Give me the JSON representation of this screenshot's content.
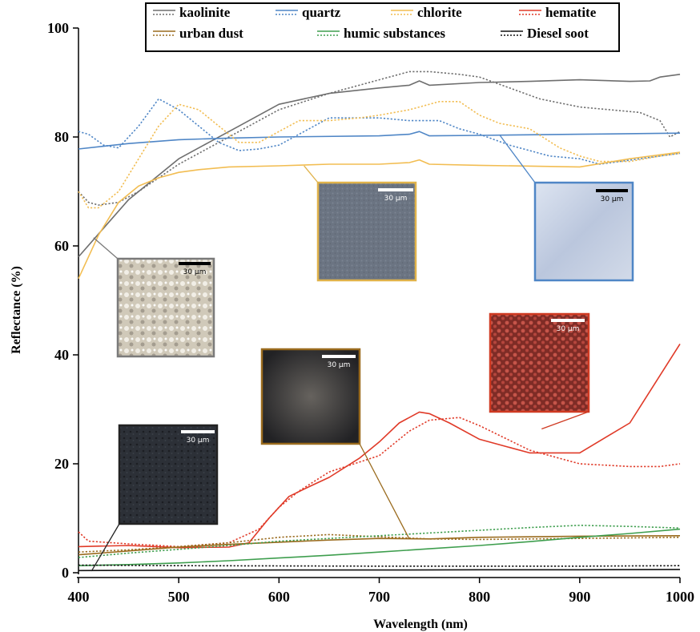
{
  "chart_data": {
    "type": "line",
    "xlabel": "Wavelength (nm)",
    "ylabel": "Reflectance (%)",
    "xlim": [
      400,
      1000
    ],
    "ylim": [
      0,
      100
    ],
    "xticks": [
      400,
      500,
      600,
      700,
      800,
      900,
      1000
    ],
    "yticks": [
      0,
      20,
      40,
      60,
      80,
      100
    ],
    "legend_position": "top",
    "note": "",
    "series": [
      {
        "name": "kaolinite",
        "color": "#6e6e6e",
        "style": "solid",
        "x": [
          400,
          450,
          500,
          530,
          560,
          600,
          650,
          700,
          730,
          740,
          750,
          800,
          850,
          900,
          950,
          970,
          980,
          1000
        ],
        "y": [
          58,
          68.5,
          76,
          79,
          82,
          86,
          88,
          89,
          89.5,
          90.3,
          89.5,
          90,
          90.2,
          90.5,
          90.2,
          90.3,
          91,
          91.5
        ]
      },
      {
        "name": "kaolinite",
        "color": "#6e6e6e",
        "style": "dotted",
        "x": [
          400,
          410,
          420,
          440,
          460,
          500,
          550,
          600,
          650,
          700,
          730,
          750,
          780,
          800,
          830,
          860,
          900,
          930,
          960,
          980,
          990,
          1000
        ],
        "y": [
          70,
          68,
          67.5,
          68,
          70,
          75,
          80,
          85,
          88,
          90.5,
          92,
          92,
          91.5,
          91,
          89,
          87,
          85.5,
          85,
          84.5,
          83,
          80,
          81
        ]
      },
      {
        "name": "quartz",
        "color": "#4f86c6",
        "style": "solid",
        "x": [
          400,
          450,
          500,
          550,
          600,
          700,
          730,
          740,
          750,
          800,
          900,
          1000
        ],
        "y": [
          77.8,
          78.8,
          79.5,
          79.8,
          80,
          80.2,
          80.5,
          81,
          80.2,
          80.3,
          80.5,
          80.7
        ]
      },
      {
        "name": "quartz",
        "color": "#4f86c6",
        "style": "dotted",
        "x": [
          400,
          410,
          425,
          440,
          460,
          480,
          500,
          520,
          540,
          560,
          580,
          600,
          620,
          650,
          700,
          730,
          760,
          780,
          800,
          830,
          850,
          870,
          900,
          920,
          940,
          960,
          980,
          1000
        ],
        "y": [
          81,
          80.5,
          78.5,
          78,
          82,
          87,
          85,
          82,
          79,
          77.5,
          77.8,
          78.5,
          80.5,
          83.5,
          83.5,
          83,
          83,
          81.5,
          80.5,
          78.5,
          77.5,
          76.5,
          76,
          75,
          75.5,
          76,
          76.5,
          77
        ]
      },
      {
        "name": "chlorite",
        "color": "#f2bd52",
        "style": "solid",
        "x": [
          400,
          420,
          440,
          460,
          480,
          500,
          520,
          550,
          600,
          650,
          700,
          730,
          740,
          750,
          800,
          900,
          950,
          1000
        ],
        "y": [
          54,
          62,
          68,
          71,
          72.5,
          73.5,
          74,
          74.5,
          74.7,
          75,
          75,
          75.3,
          75.8,
          75,
          74.8,
          74.5,
          76,
          77.2
        ]
      },
      {
        "name": "chlorite",
        "color": "#f2bd52",
        "style": "dotted",
        "x": [
          400,
          410,
          420,
          440,
          460,
          480,
          500,
          520,
          540,
          560,
          580,
          600,
          620,
          650,
          680,
          700,
          730,
          760,
          780,
          800,
          820,
          850,
          880,
          900,
          920,
          950,
          980,
          1000
        ],
        "y": [
          70,
          67,
          67,
          70,
          76,
          82,
          86,
          85,
          82,
          79,
          79,
          81,
          83,
          83,
          83.5,
          84,
          85,
          86.5,
          86.5,
          84,
          82.5,
          81.5,
          78,
          76.5,
          75.5,
          75.5,
          76.5,
          77
        ]
      },
      {
        "name": "hematite",
        "color": "#e03a28",
        "style": "solid",
        "x": [
          400,
          450,
          500,
          550,
          570,
          590,
          610,
          630,
          650,
          680,
          700,
          720,
          740,
          750,
          770,
          800,
          850,
          900,
          950,
          1000
        ],
        "y": [
          4.8,
          5,
          4.6,
          4.7,
          5.5,
          10,
          14,
          15.8,
          17.5,
          21,
          24,
          27.5,
          29.5,
          29.2,
          27.5,
          24.5,
          22,
          22,
          27.5,
          42
        ]
      },
      {
        "name": "hematite",
        "color": "#e03a28",
        "style": "dotted",
        "x": [
          400,
          410,
          450,
          500,
          550,
          580,
          600,
          620,
          650,
          700,
          730,
          750,
          780,
          800,
          850,
          900,
          950,
          980,
          1000
        ],
        "y": [
          7.5,
          5.8,
          5.3,
          4.8,
          5.5,
          8,
          12,
          15,
          18.5,
          21.5,
          26,
          28,
          28.5,
          27,
          22.5,
          20,
          19.5,
          19.5,
          20
        ]
      },
      {
        "name": "urban dust",
        "color": "#9a6b1e",
        "style": "solid",
        "x": [
          400,
          450,
          500,
          550,
          600,
          650,
          700,
          750,
          800,
          900,
          1000
        ],
        "y": [
          3.3,
          4,
          4.7,
          5.2,
          5.6,
          6,
          6.3,
          6.2,
          6.5,
          6.7,
          6.8
        ]
      },
      {
        "name": "urban dust",
        "color": "#9a6b1e",
        "style": "dotted",
        "x": [
          400,
          450,
          500,
          550,
          600,
          650,
          700,
          750,
          800,
          900,
          1000
        ],
        "y": [
          3.8,
          4.2,
          4.8,
          5.5,
          6.5,
          7,
          6.6,
          6.2,
          6.1,
          6.3,
          6.5
        ]
      },
      {
        "name": "humic substances",
        "color": "#3e9e4e",
        "style": "solid",
        "x": [
          400,
          450,
          500,
          550,
          600,
          650,
          700,
          750,
          800,
          850,
          900,
          950,
          1000
        ],
        "y": [
          1.3,
          1.5,
          1.8,
          2.2,
          2.7,
          3.2,
          3.8,
          4.4,
          5,
          5.7,
          6.5,
          7.2,
          8
        ]
      },
      {
        "name": "humic substances",
        "color": "#3e9e4e",
        "style": "dotted",
        "x": [
          400,
          450,
          500,
          550,
          600,
          650,
          700,
          750,
          800,
          850,
          900,
          950,
          1000
        ],
        "y": [
          2.8,
          3.6,
          4.3,
          5,
          5.8,
          6.3,
          6.8,
          7.3,
          7.8,
          8.3,
          8.7,
          8.5,
          8.2
        ]
      },
      {
        "name": "Diesel soot",
        "color": "#111111",
        "style": "solid",
        "x": [
          400,
          500,
          600,
          700,
          800,
          900,
          1000
        ],
        "y": [
          0.4,
          0.45,
          0.5,
          0.5,
          0.55,
          0.55,
          0.6
        ]
      },
      {
        "name": "Diesel soot",
        "color": "#111111",
        "style": "dotted",
        "x": [
          400,
          500,
          600,
          700,
          800,
          900,
          1000
        ],
        "y": [
          1.4,
          1.3,
          1.25,
          1.2,
          1.2,
          1.2,
          1.3
        ]
      }
    ],
    "legend": [
      {
        "label": "kaolinite",
        "color": "#6e6e6e"
      },
      {
        "label": "quartz",
        "color": "#4f86c6"
      },
      {
        "label": "chlorite",
        "color": "#f2bd52"
      },
      {
        "label": "hematite",
        "color": "#e03a28"
      },
      {
        "label": "urban dust",
        "color": "#9a6b1e"
      },
      {
        "label": "humic substances",
        "color": "#3e9e4e"
      },
      {
        "label": "Diesel soot",
        "color": "#111111"
      }
    ],
    "insets": [
      {
        "name": "kaolinite",
        "border": "#7a7a7a",
        "fill": "#d9d2c4",
        "scale_label": "30 µm",
        "scale_bar_color": "#000000",
        "scale_text_color": "#000000",
        "pointer": [
          415,
          61.5
        ]
      },
      {
        "name": "chlorite",
        "border": "#e0b24a",
        "fill": "#6f7784",
        "scale_label": "30 µm",
        "scale_bar_color": "#ffffff",
        "scale_text_color": "#ffffff",
        "pointer": [
          625,
          74.7
        ]
      },
      {
        "name": "quartz",
        "border": "#4f86c6",
        "fill": "#c9d4e6",
        "scale_label": "30 µm",
        "scale_bar_color": "#000000",
        "scale_text_color": "#000000",
        "pointer": [
          820,
          80.4
        ]
      },
      {
        "name": "hematite",
        "border": "#cf3a22",
        "fill": "#a8433a",
        "scale_label": "30 µm",
        "scale_bar_color": "#ffffff",
        "scale_text_color": "#ffffff",
        "pointer": [
          862,
          26.4
        ]
      },
      {
        "name": "urban dust",
        "border": "#9a6b1e",
        "fill": "#3a3a3a",
        "scale_label": "30 µm",
        "scale_bar_color": "#ffffff",
        "scale_text_color": "#ffffff",
        "pointer": [
          730,
          6.2
        ]
      },
      {
        "name": "Diesel soot",
        "border": "#222222",
        "fill": "#2f333a",
        "scale_label": "30 µm",
        "scale_bar_color": "#ffffff",
        "scale_text_color": "#ffffff",
        "pointer": [
          413,
          0.3
        ]
      }
    ]
  }
}
